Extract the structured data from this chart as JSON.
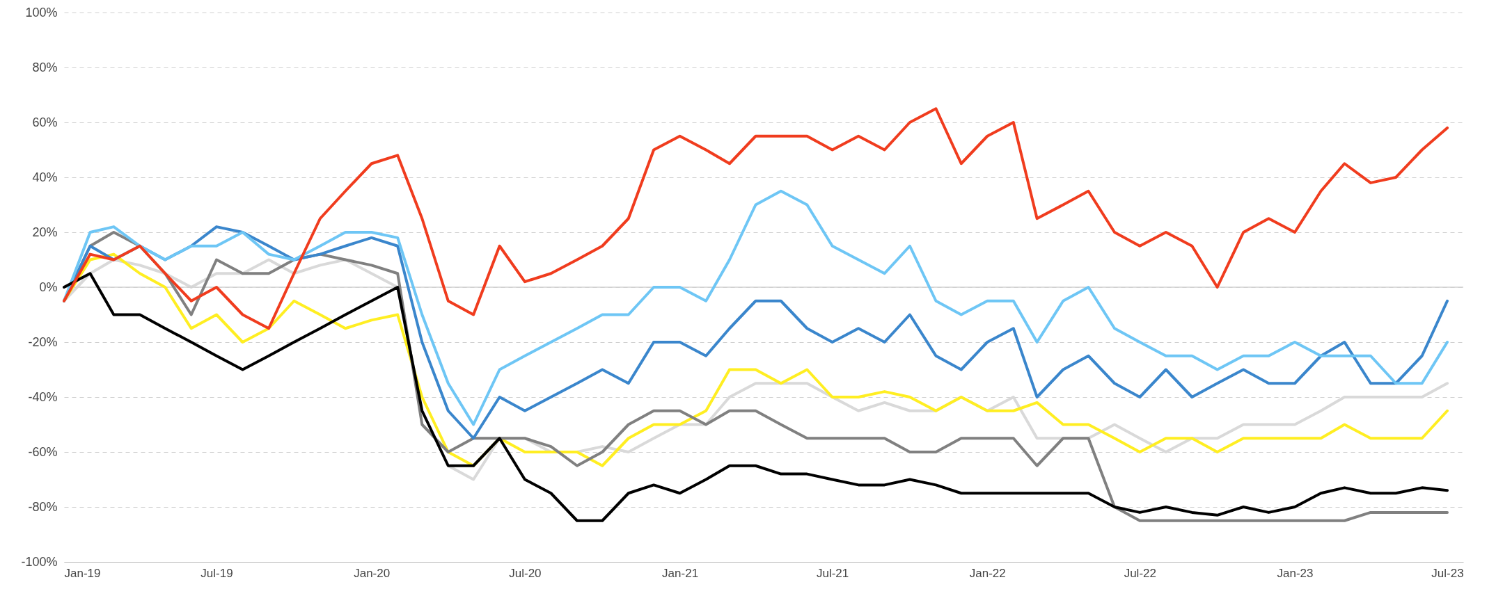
{
  "chart_data": {
    "type": "line",
    "x": [
      "2019-01",
      "2019-02",
      "2019-03",
      "2019-04",
      "2019-05",
      "2019-06",
      "2019-07",
      "2019-08",
      "2019-09",
      "2019-10",
      "2019-11",
      "2019-12",
      "2020-01",
      "2020-02",
      "2020-03",
      "2020-04",
      "2020-05",
      "2020-06",
      "2020-07",
      "2020-08",
      "2020-09",
      "2020-10",
      "2020-11",
      "2020-12",
      "2021-01",
      "2021-02",
      "2021-03",
      "2021-04",
      "2021-05",
      "2021-06",
      "2021-07",
      "2021-08",
      "2021-09",
      "2021-10",
      "2021-11",
      "2021-12",
      "2022-01",
      "2022-02",
      "2022-03",
      "2022-04",
      "2022-05",
      "2022-06",
      "2022-07",
      "2022-08",
      "2022-09",
      "2022-10",
      "2022-11",
      "2022-12",
      "2023-01",
      "2023-02",
      "2023-03",
      "2023-04",
      "2023-05",
      "2023-06",
      "2023-07"
    ],
    "series": [
      {
        "color": "#d9d9d9",
        "values": [
          -5,
          5,
          10,
          8,
          5,
          0,
          5,
          5,
          10,
          5,
          8,
          10,
          5,
          0,
          -45,
          -65,
          -70,
          -55,
          -55,
          -60,
          -60,
          -58,
          -60,
          -55,
          -50,
          -50,
          -40,
          -35,
          -35,
          -35,
          -40,
          -45,
          -42,
          -45,
          -45,
          -40,
          -45,
          -40,
          -55,
          -55,
          -55,
          -50,
          -55,
          -60,
          -55,
          -55,
          -50,
          -50,
          -50,
          -45,
          -40,
          -40,
          -40,
          -40,
          -35
        ]
      },
      {
        "color": "#ffee22",
        "values": [
          -5,
          10,
          12,
          5,
          0,
          -15,
          -10,
          -20,
          -15,
          -5,
          -10,
          -15,
          -12,
          -10,
          -40,
          -60,
          -65,
          -55,
          -60,
          -60,
          -60,
          -65,
          -55,
          -50,
          -50,
          -45,
          -30,
          -30,
          -35,
          -30,
          -40,
          -40,
          -38,
          -40,
          -45,
          -40,
          -45,
          -45,
          -42,
          -50,
          -50,
          -55,
          -60,
          -55,
          -55,
          -60,
          -55,
          -55,
          -55,
          -55,
          -50,
          -55,
          -55,
          -55,
          -45
        ]
      },
      {
        "color": "#808080",
        "values": [
          -5,
          15,
          20,
          15,
          5,
          -10,
          10,
          5,
          5,
          10,
          12,
          10,
          8,
          5,
          -50,
          -60,
          -55,
          -55,
          -55,
          -58,
          -65,
          -60,
          -50,
          -45,
          -45,
          -50,
          -45,
          -45,
          -50,
          -55,
          -55,
          -55,
          -55,
          -60,
          -60,
          -55,
          -55,
          -55,
          -65,
          -55,
          -55,
          -80,
          -85,
          -85,
          -85,
          -85,
          -85,
          -85,
          -85,
          -85,
          -85,
          -82,
          -82,
          -82,
          -82
        ]
      },
      {
        "color": "#3a86cc",
        "values": [
          -5,
          15,
          10,
          15,
          10,
          15,
          22,
          20,
          15,
          10,
          12,
          15,
          18,
          15,
          -20,
          -45,
          -55,
          -40,
          -45,
          -40,
          -35,
          -30,
          -35,
          -20,
          -20,
          -25,
          -15,
          -5,
          -5,
          -15,
          -20,
          -15,
          -20,
          -10,
          -25,
          -30,
          -20,
          -15,
          -40,
          -30,
          -25,
          -35,
          -40,
          -30,
          -40,
          -35,
          -30,
          -35,
          -35,
          -25,
          -20,
          -35,
          -35,
          -25,
          -5
        ]
      },
      {
        "color": "#6ec6f5",
        "values": [
          -5,
          20,
          22,
          15,
          10,
          15,
          15,
          20,
          12,
          10,
          15,
          20,
          20,
          18,
          -10,
          -35,
          -50,
          -30,
          -25,
          -20,
          -15,
          -10,
          -10,
          0,
          0,
          -5,
          10,
          30,
          35,
          30,
          15,
          10,
          5,
          15,
          -5,
          -10,
          -5,
          -5,
          -20,
          -5,
          0,
          -15,
          -20,
          -25,
          -25,
          -30,
          -25,
          -25,
          -20,
          -25,
          -25,
          -25,
          -35,
          -35,
          -20
        ]
      },
      {
        "color": "#000000",
        "values": [
          0,
          5,
          -10,
          -10,
          -15,
          -20,
          -25,
          -30,
          -25,
          -20,
          -15,
          -10,
          -5,
          0,
          -45,
          -65,
          -65,
          -55,
          -70,
          -75,
          -85,
          -85,
          -75,
          -72,
          -75,
          -70,
          -65,
          -65,
          -68,
          -68,
          -70,
          -72,
          -72,
          -70,
          -72,
          -75,
          -75,
          -75,
          -75,
          -75,
          -75,
          -80,
          -82,
          -80,
          -82,
          -83,
          -80,
          -82,
          -80,
          -75,
          -73,
          -75,
          -75,
          -73,
          -74
        ]
      },
      {
        "color": "#f03c1e",
        "values": [
          -5,
          12,
          10,
          15,
          5,
          -5,
          0,
          -10,
          -15,
          5,
          25,
          35,
          45,
          48,
          25,
          -5,
          -10,
          15,
          2,
          5,
          10,
          15,
          25,
          50,
          55,
          50,
          45,
          55,
          55,
          55,
          50,
          55,
          50,
          60,
          65,
          45,
          55,
          60,
          25,
          30,
          35,
          20,
          15,
          20,
          15,
          0,
          20,
          25,
          20,
          35,
          45,
          38,
          40,
          50,
          58
        ]
      }
    ],
    "xlim": [
      "2019-01",
      "2023-07-20"
    ],
    "ylim": [
      -100,
      100
    ],
    "xticks": [
      {
        "value": "2019-01",
        "label": "Jan-19"
      },
      {
        "value": "2019-07",
        "label": "Jul-19"
      },
      {
        "value": "2020-01",
        "label": "Jan-20"
      },
      {
        "value": "2020-07",
        "label": "Jul-20"
      },
      {
        "value": "2021-01",
        "label": "Jan-21"
      },
      {
        "value": "2021-07",
        "label": "Jul-21"
      },
      {
        "value": "2022-01",
        "label": "Jan-22"
      },
      {
        "value": "2022-07",
        "label": "Jul-22"
      },
      {
        "value": "2023-01",
        "label": "Jan-23"
      },
      {
        "value": "2023-07",
        "label": "Jul-23"
      }
    ],
    "yticks": [
      {
        "value": -100,
        "label": "-100%"
      },
      {
        "value": -80,
        "label": "-80%"
      },
      {
        "value": -60,
        "label": "-60%"
      },
      {
        "value": -40,
        "label": "-40%"
      },
      {
        "value": -20,
        "label": "-20%"
      },
      {
        "value": 0,
        "label": "0%"
      },
      {
        "value": 20,
        "label": "20%"
      },
      {
        "value": 40,
        "label": "40%"
      },
      {
        "value": 60,
        "label": "60%"
      },
      {
        "value": 80,
        "label": "80%"
      },
      {
        "value": 100,
        "label": "100%"
      }
    ],
    "grid": "y",
    "ref_lines": [
      {
        "axis": "y",
        "value": 0,
        "color": "#d0d0d0"
      }
    ]
  }
}
